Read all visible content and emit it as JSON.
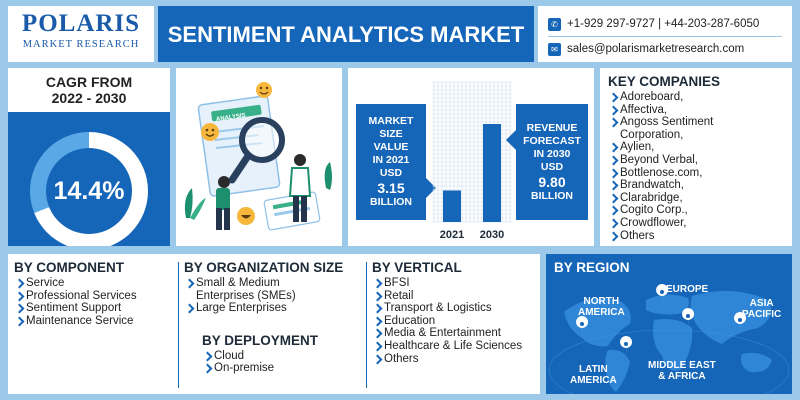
{
  "logo": {
    "name": "POLARIS",
    "tagline": "MARKET RESEARCH"
  },
  "title": "SENTIMENT ANALYTICS MARKET",
  "contact": {
    "phone": "+1-929 297-9727 | +44-203-287-6050",
    "email": "sales@polarismarketresearch.com"
  },
  "cagr": {
    "label_line1": "CAGR FROM",
    "label_line2": "2022 - 2030",
    "value": "14.4%"
  },
  "market": {
    "left": {
      "l1": "MARKET",
      "l2": "SIZE",
      "l3": "VALUE",
      "l4": "IN 2021",
      "l5": "USD",
      "value": "3.15",
      "unit": "BILLION"
    },
    "right": {
      "l1": "REVENUE",
      "l2": "FORECAST",
      "l3": "IN 2030",
      "l4": "USD",
      "value": "9.80",
      "unit": "BILLION"
    }
  },
  "chart_data": {
    "type": "bar",
    "categories": [
      "2021",
      "2030"
    ],
    "values": [
      3.15,
      9.8
    ],
    "ylim": [
      0,
      14
    ]
  },
  "companies": {
    "heading": "KEY COMPANIES",
    "items": [
      "Adoreboard,",
      "Affectiva,",
      "Angoss Sentiment",
      "Corporation,",
      "Aylien,",
      "Beyond Verbal,",
      "Bottlenose.com,",
      "Brandwatch,",
      "Clarabridge,",
      "Cogito Corp.,",
      "Crowdflower,",
      "Others"
    ]
  },
  "component": {
    "heading": "BY COMPONENT",
    "items": [
      "Service",
      "Professional Services",
      "Sentiment Support",
      "Maintenance Service"
    ]
  },
  "org_size": {
    "heading": "BY ORGANIZATION SIZE",
    "items": [
      "Small & Medium",
      "Enterprises (SMEs)",
      "Large Enterprises"
    ]
  },
  "deployment": {
    "heading": "BY DEPLOYMENT",
    "items": [
      "Cloud",
      "On-premise"
    ]
  },
  "vertical": {
    "heading": "BY VERTICAL",
    "items": [
      "BFSI",
      "Retail",
      "Transport & Logistics",
      "Education",
      "Media & Entertainment",
      "Healthcare & Life Sciences",
      "Others"
    ]
  },
  "region": {
    "heading": "BY REGION",
    "na1": "NORTH",
    "na2": "AMERICA",
    "eu": "EUROPE",
    "ap1": "ASIA",
    "ap2": "PACIFIC",
    "la1": "LATIN",
    "la2": "AMERICA",
    "me1": "MIDDLE EAST",
    "me2": "& AFRICA"
  },
  "illustration": {
    "card_label": "ANALYSIS"
  }
}
